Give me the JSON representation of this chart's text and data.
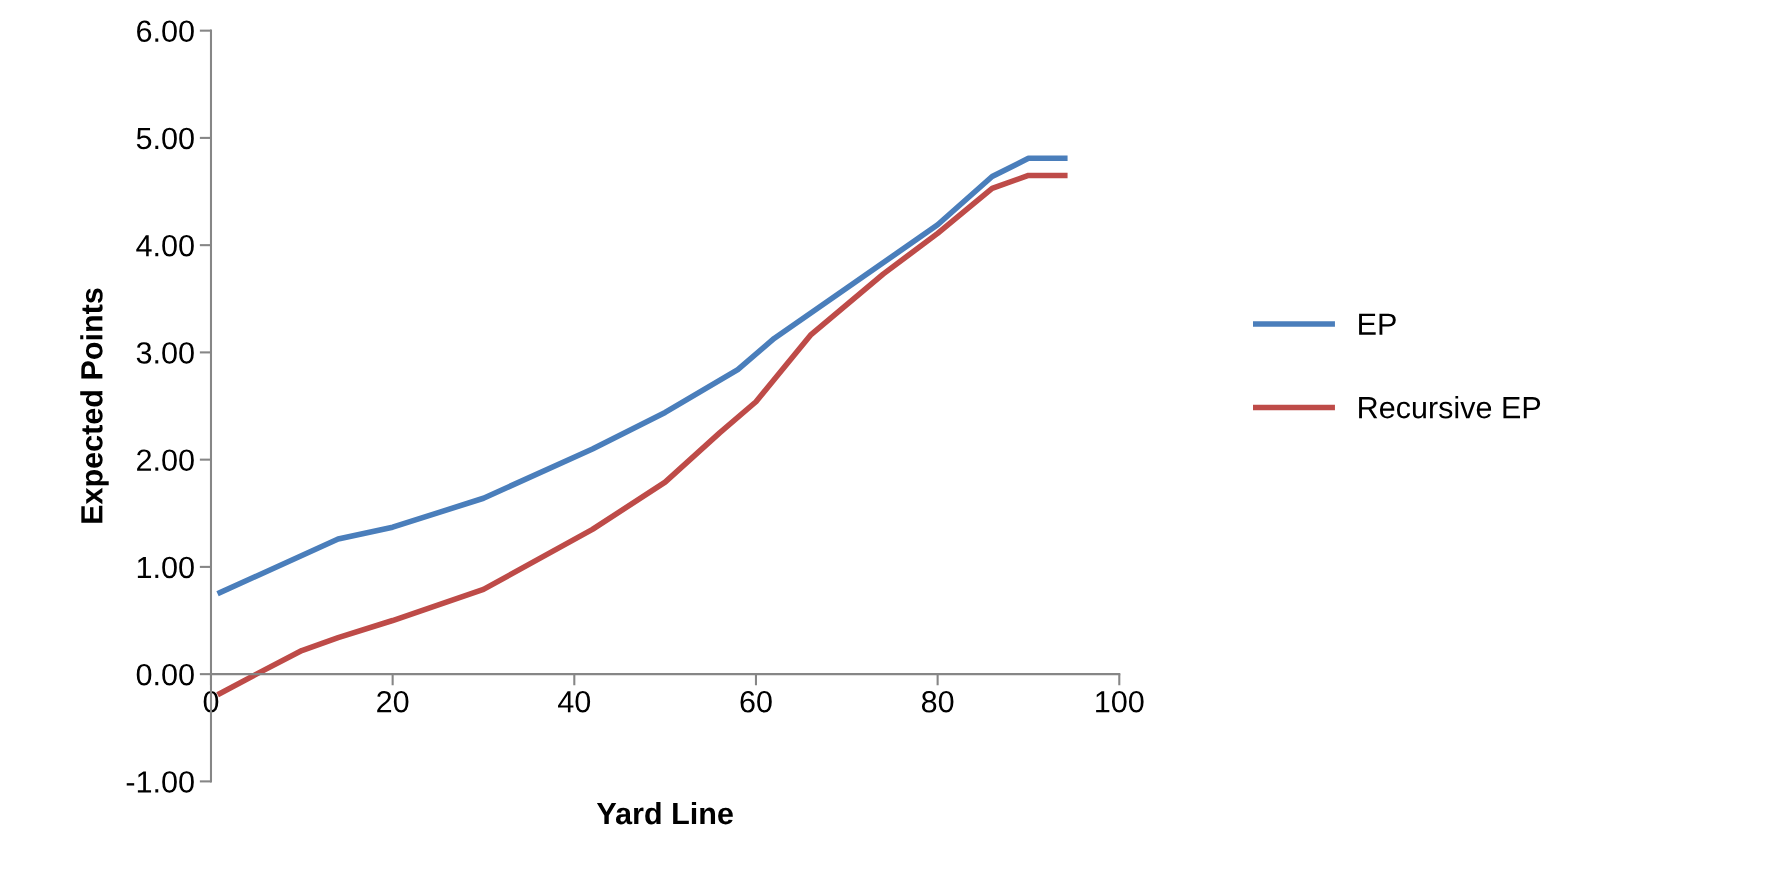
{
  "chart_data": {
    "type": "line",
    "xlabel": "Yard Line",
    "ylabel": "Expected Points",
    "xlim": [
      0,
      100
    ],
    "xticks": [
      0,
      20,
      40,
      60,
      80,
      100
    ],
    "ylim": [
      -1,
      6
    ],
    "yticks": [
      {
        "value": -1,
        "label": "-1.00"
      },
      {
        "value": 0,
        "label": "0.00"
      },
      {
        "value": 1,
        "label": "1.00"
      },
      {
        "value": 2,
        "label": "2.00"
      },
      {
        "value": 3,
        "label": "3.00"
      },
      {
        "value": 4,
        "label": "4.00"
      },
      {
        "value": 5,
        "label": "5.00"
      },
      {
        "value": 6,
        "label": "6.00"
      }
    ],
    "grid": false,
    "legend": "right",
    "marker": "none",
    "line_style": "solid",
    "series": [
      {
        "name": "EP",
        "color": "#4a7ebb",
        "x": [
          1,
          14,
          20,
          30,
          42,
          50,
          58,
          62,
          70,
          80,
          86,
          90,
          94
        ],
        "values": [
          0.76,
          1.26,
          1.37,
          1.64,
          2.1,
          2.44,
          2.84,
          3.13,
          3.6,
          4.19,
          4.64,
          4.81,
          4.81
        ]
      },
      {
        "name": "Recursive EP",
        "color": "#be4b48",
        "x": [
          1,
          5,
          10,
          14,
          20,
          30,
          42,
          50,
          56,
          60,
          66,
          74,
          80,
          86,
          90,
          94
        ],
        "values": [
          -0.18,
          0.0,
          0.22,
          0.34,
          0.5,
          0.79,
          1.35,
          1.79,
          2.25,
          2.54,
          3.16,
          3.73,
          4.11,
          4.53,
          4.65,
          4.65
        ]
      }
    ]
  }
}
